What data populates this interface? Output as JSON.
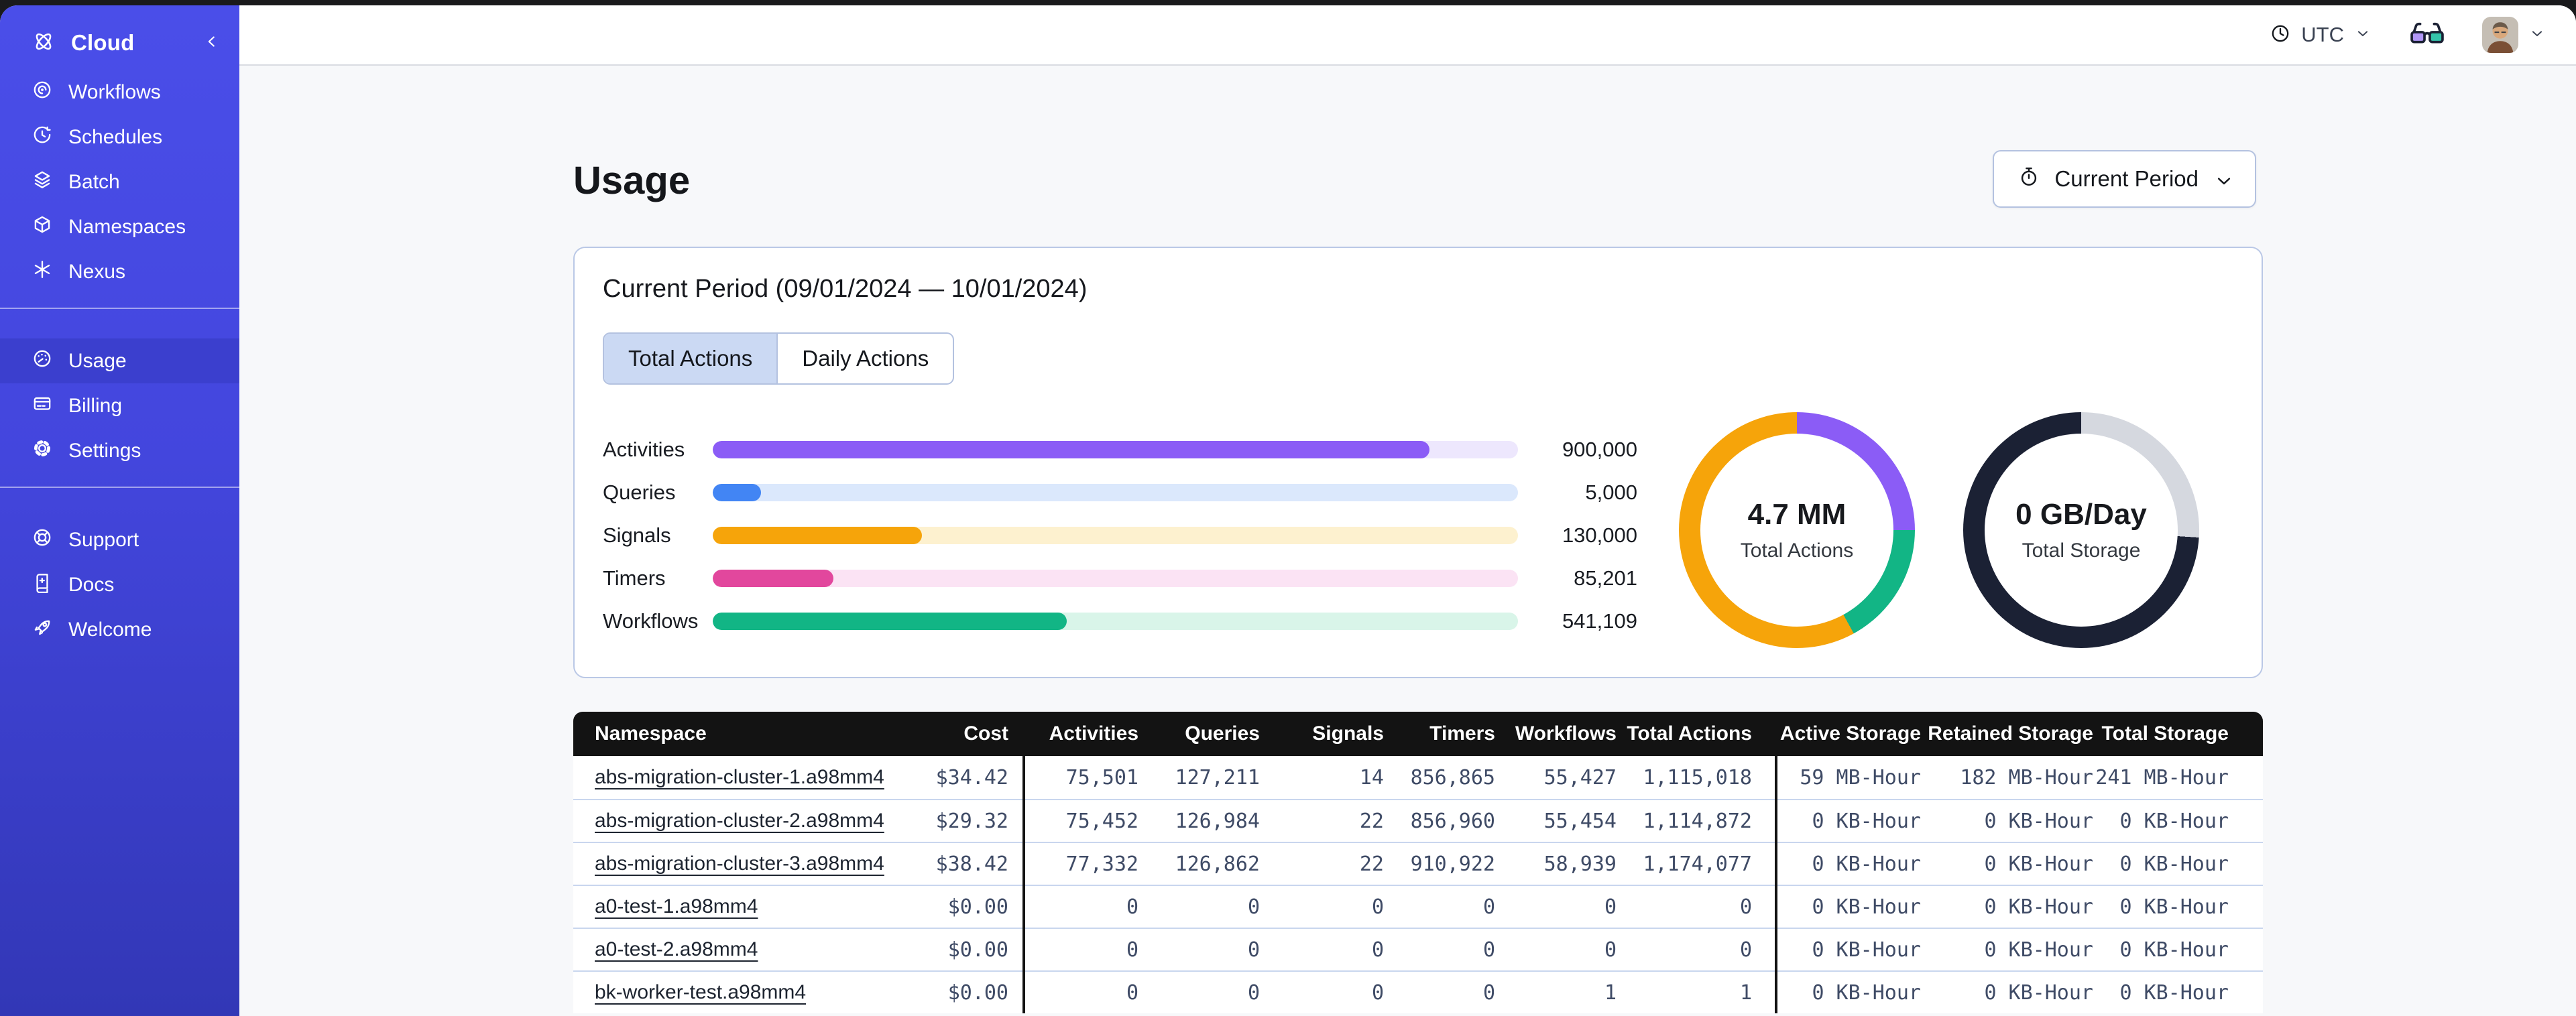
{
  "sidebar": {
    "brand": {
      "label": "Cloud",
      "logo_icon": "temporal-logo",
      "collapse_icon": "chevron-left"
    },
    "sections": [
      {
        "items": [
          {
            "label": "Workflows",
            "icon": "workflows",
            "active": false
          },
          {
            "label": "Schedules",
            "icon": "schedules",
            "active": false
          },
          {
            "label": "Batch",
            "icon": "batch",
            "active": false
          },
          {
            "label": "Namespaces",
            "icon": "namespaces",
            "active": false
          },
          {
            "label": "Nexus",
            "icon": "nexus",
            "active": false
          }
        ]
      },
      {
        "items": [
          {
            "label": "Usage",
            "icon": "usage",
            "active": true
          },
          {
            "label": "Billing",
            "icon": "billing",
            "active": false
          },
          {
            "label": "Settings",
            "icon": "settings",
            "active": false
          }
        ]
      },
      {
        "items": [
          {
            "label": "Support",
            "icon": "support",
            "active": false
          },
          {
            "label": "Docs",
            "icon": "docs",
            "active": false
          },
          {
            "label": "Welcome",
            "icon": "welcome",
            "active": false
          }
        ]
      }
    ]
  },
  "topbar": {
    "timezone": "UTC"
  },
  "page": {
    "title": "Usage",
    "period_button": {
      "label": "Current Period",
      "icon": "stopwatch"
    }
  },
  "usage_card": {
    "title": "Current Period (09/01/2024 — 10/01/2024)",
    "tabs": [
      {
        "label": "Total Actions",
        "active": true
      },
      {
        "label": "Daily Actions",
        "active": false
      }
    ]
  },
  "chart_data": [
    {
      "type": "bar",
      "orientation": "horizontal",
      "title": "Current Period (09/01/2024 — 10/01/2024)",
      "categories": [
        "Activities",
        "Queries",
        "Signals",
        "Timers",
        "Workflows"
      ],
      "values": [
        900000,
        5000,
        130000,
        85201,
        541109
      ],
      "display_values": [
        "900,000",
        "5,000",
        "130,000",
        "85,201",
        "541,109"
      ],
      "fill_pct": [
        89,
        6,
        26,
        15,
        44
      ],
      "colors": [
        "#8b5cf6",
        "#4285f4",
        "#f6a40a",
        "#e2479d",
        "#12b585"
      ],
      "track_colors": [
        "#ede7fd",
        "#dbe8fc",
        "#fdf1cf",
        "#fbe3f4",
        "#d9f5e9"
      ]
    },
    {
      "type": "donut",
      "center_value": "4.7 MM",
      "center_label": "Total Actions",
      "segments": [
        {
          "color": "#8b5cf6",
          "pct": 25
        },
        {
          "color": "#12b585",
          "pct": 17
        },
        {
          "color": "#f6a40a",
          "pct": 58
        }
      ]
    },
    {
      "type": "donut",
      "center_value": "0 GB/Day",
      "center_label": "Total Storage",
      "segments": [
        {
          "color": "#d5d8df",
          "pct": 26
        },
        {
          "color": "#1b2134",
          "pct": 74
        }
      ]
    }
  ],
  "table": {
    "columns": [
      {
        "label": "Namespace",
        "align": "left",
        "kind": "link"
      },
      {
        "label": "Cost",
        "align": "right",
        "kind": "mono",
        "cls": "pr-cost"
      },
      {
        "kind": "divider"
      },
      {
        "label": "Activities",
        "align": "right",
        "kind": "mono"
      },
      {
        "label": "Queries",
        "align": "right",
        "kind": "mono"
      },
      {
        "label": "Signals",
        "align": "right",
        "kind": "mono"
      },
      {
        "label": "Timers",
        "align": "right",
        "kind": "mono"
      },
      {
        "label": "Workflows",
        "align": "right",
        "kind": "mono"
      },
      {
        "label": "Total Actions",
        "align": "right",
        "kind": "mono",
        "cls": "pr-ta"
      },
      {
        "kind": "divider"
      },
      {
        "label": "Active Storage",
        "align": "right",
        "kind": "mono"
      },
      {
        "label": "Retained Storage",
        "align": "right",
        "kind": "mono"
      },
      {
        "label": "Total Storage",
        "align": "right",
        "kind": "mono"
      },
      {
        "kind": "spacer"
      }
    ],
    "rows": [
      [
        "abs-migration-cluster-1.a98mm4",
        "$34.42",
        "75,501",
        "127,211",
        "14",
        "856,865",
        "55,427",
        "1,115,018",
        "59 MB-Hour",
        "182 MB-Hour",
        "241 MB-Hour"
      ],
      [
        "abs-migration-cluster-2.a98mm4",
        "$29.32",
        "75,452",
        "126,984",
        "22",
        "856,960",
        "55,454",
        "1,114,872",
        "0 KB-Hour",
        "0 KB-Hour",
        "0 KB-Hour"
      ],
      [
        "abs-migration-cluster-3.a98mm4",
        "$38.42",
        "77,332",
        "126,862",
        "22",
        "910,922",
        "58,939",
        "1,174,077",
        "0 KB-Hour",
        "0 KB-Hour",
        "0 KB-Hour"
      ],
      [
        "a0-test-1.a98mm4",
        "$0.00",
        "0",
        "0",
        "0",
        "0",
        "0",
        "0",
        "0 KB-Hour",
        "0 KB-Hour",
        "0 KB-Hour"
      ],
      [
        "a0-test-2.a98mm4",
        "$0.00",
        "0",
        "0",
        "0",
        "0",
        "0",
        "0",
        "0 KB-Hour",
        "0 KB-Hour",
        "0 KB-Hour"
      ],
      [
        "bk-worker-test.a98mm4",
        "$0.00",
        "0",
        "0",
        "0",
        "0",
        "1",
        "1",
        "0 KB-Hour",
        "0 KB-Hour",
        "0 KB-Hour"
      ]
    ]
  }
}
